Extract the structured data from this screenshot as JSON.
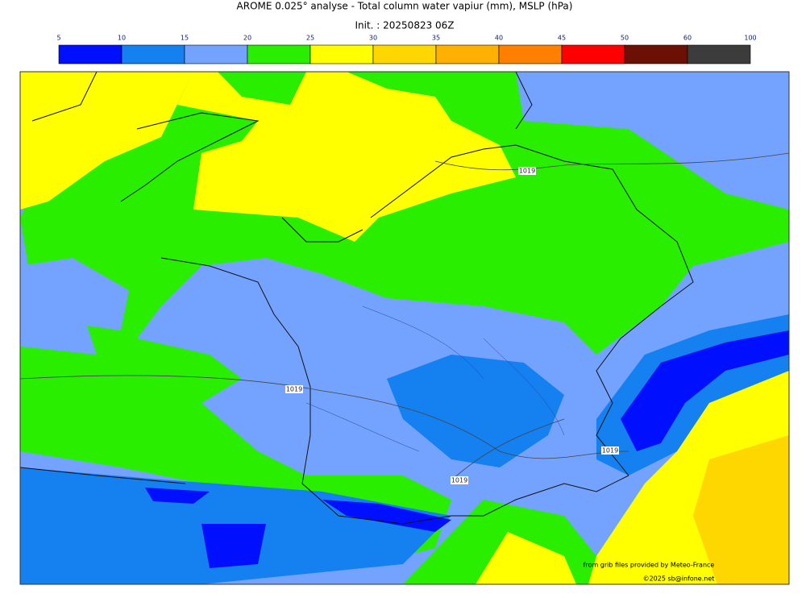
{
  "header": {
    "title": "AROME 0.025° analyse - Total column water vapiur (mm), MSLP (hPa)",
    "subtitle": "Init. : 20250823 06Z"
  },
  "colorbar": {
    "ticks": [
      5,
      10,
      15,
      20,
      25,
      30,
      35,
      40,
      45,
      50,
      60,
      100
    ],
    "colors": [
      "#0010ff",
      "#1580f0",
      "#74a2ff",
      "#2aee00",
      "#ffff00",
      "#ffd700",
      "#ffb000",
      "#ff8000",
      "#ff0000",
      "#6b1005",
      "#3c3c3c"
    ]
  },
  "map": {
    "isobar_labels": [
      1019,
      1019,
      1019,
      1019
    ],
    "credits": [
      "from grib files provided by Meteo-France",
      "©2025 sb@infone.net"
    ]
  }
}
